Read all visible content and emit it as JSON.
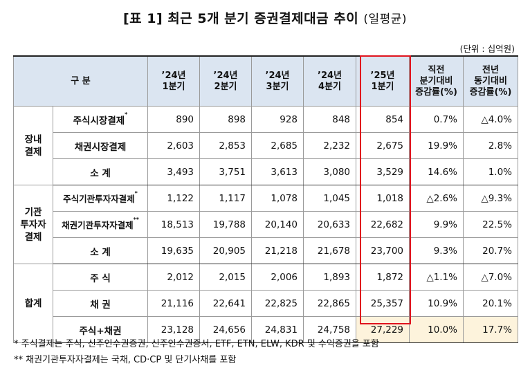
{
  "title": {
    "main": "[표 1] 최근 5개 분기 증권결제대금 추이",
    "sub": "(일평균)"
  },
  "unit": "(단위 : 십억원)",
  "header": {
    "category": "구   분",
    "q1": [
      "’24년",
      "1분기"
    ],
    "q2": [
      "’24년",
      "2분기"
    ],
    "q3": [
      "’24년",
      "3분기"
    ],
    "q4": [
      "’24년",
      "4분기"
    ],
    "q5": [
      "’25년",
      "1분기"
    ],
    "qoq": [
      "직전",
      "분기대비",
      "증감률(%)"
    ],
    "yoy": [
      "전년",
      "동기대비",
      "증감률(%)"
    ]
  },
  "groups": {
    "exchange": [
      "장내",
      "결제"
    ],
    "inst": [
      "기관",
      "투자자",
      "결제"
    ],
    "total": "합계"
  },
  "rows": [
    {
      "label": "주식시장결제",
      "sup": "*",
      "v": [
        "890",
        "898",
        "928",
        "848",
        "854"
      ],
      "qoq": "0.7%",
      "yoy": "△4.0%"
    },
    {
      "label": "채권시장결제",
      "sup": "",
      "v": [
        "2,603",
        "2,853",
        "2,685",
        "2,232",
        "2,675"
      ],
      "qoq": "19.9%",
      "yoy": "2.8%"
    },
    {
      "label": "소 계",
      "sup": "",
      "v": [
        "3,493",
        "3,751",
        "3,613",
        "3,080",
        "3,529"
      ],
      "qoq": "14.6%",
      "yoy": "1.0%"
    },
    {
      "label": "주식기관투자자결제",
      "sup": "*",
      "v": [
        "1,122",
        "1,117",
        "1,078",
        "1,045",
        "1,018"
      ],
      "qoq": "△2.6%",
      "yoy": "△9.3%"
    },
    {
      "label": "채권기관투자자결제",
      "sup": "**",
      "v": [
        "18,513",
        "19,788",
        "20,140",
        "20,633",
        "22,682"
      ],
      "qoq": "9.9%",
      "yoy": "22.5%"
    },
    {
      "label": "소 계",
      "sup": "",
      "v": [
        "19,635",
        "20,905",
        "21,218",
        "21,678",
        "23,700"
      ],
      "qoq": "9.3%",
      "yoy": "20.7%"
    },
    {
      "label": "주 식",
      "sup": "",
      "v": [
        "2,012",
        "2,015",
        "2,006",
        "1,893",
        "1,872"
      ],
      "qoq": "△1.1%",
      "yoy": "△7.0%"
    },
    {
      "label": "채 권",
      "sup": "",
      "v": [
        "21,116",
        "22,641",
        "22,825",
        "22,865",
        "25,357"
      ],
      "qoq": "10.9%",
      "yoy": "20.1%"
    },
    {
      "label": "주식+채권",
      "sup": "",
      "v": [
        "23,128",
        "24,656",
        "24,831",
        "24,758",
        "27,229"
      ],
      "qoq": "10.0%",
      "yoy": "17.7%"
    }
  ],
  "notes": [
    "*  주식결제는 주식, 신주인수권증권, 신주인수권증서, ETF, ETN, ELW, KDR 및 수익증권을 포함",
    "**  채권기관투자자결제는 국채, CD·CP 및 단기사채를 포함"
  ],
  "colors": {
    "header_bg": "#dbe5f1",
    "highlight_bg": "#fdf3dc",
    "box": "#e0141e"
  }
}
